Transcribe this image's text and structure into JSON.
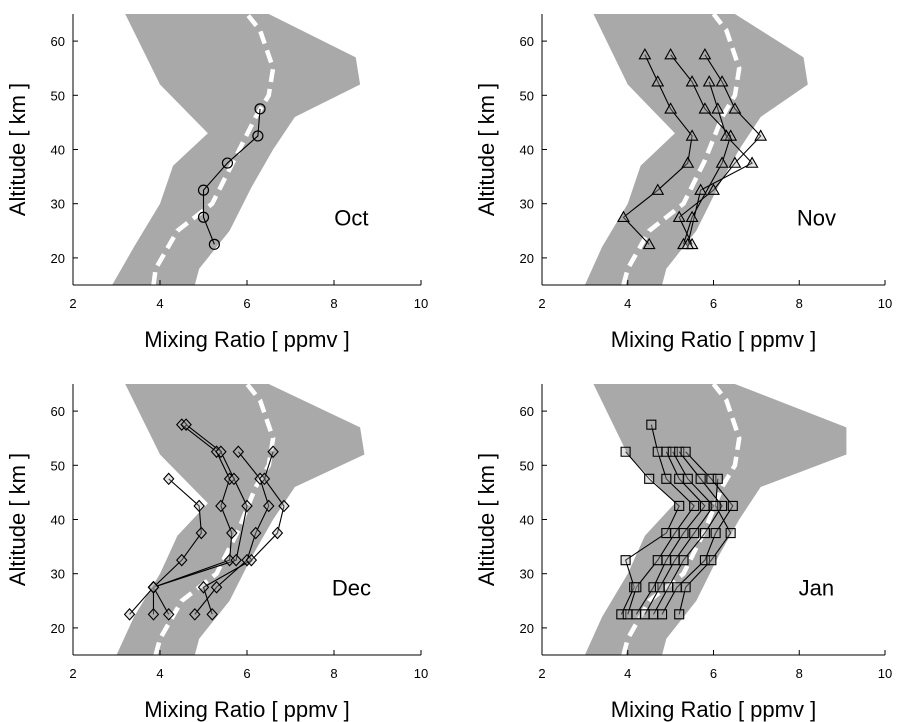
{
  "chart_data": [
    {
      "type": "line",
      "panel_label": "Oct",
      "xlabel": "Mixing Ratio  [ ppmv ]",
      "ylabel": "Altitude  [ km ]",
      "xlim": [
        2,
        10
      ],
      "ylim": [
        15,
        65
      ],
      "x_ticks": [
        "2",
        "4",
        "6",
        "8",
        "10"
      ],
      "y_ticks": [
        "20",
        "30",
        "40",
        "50",
        "60"
      ],
      "marker": "circle",
      "envelope": {
        "left": [
          [
            2.9,
            15
          ],
          [
            3.4,
            22
          ],
          [
            4.0,
            30
          ],
          [
            4.3,
            37
          ],
          [
            5.1,
            43
          ],
          [
            4.0,
            52
          ],
          [
            3.2,
            65
          ]
        ],
        "right": [
          [
            4.8,
            15
          ],
          [
            4.9,
            18
          ],
          [
            5.6,
            25
          ],
          [
            6.1,
            33
          ],
          [
            6.6,
            40
          ],
          [
            7.1,
            46
          ],
          [
            8.6,
            52
          ],
          [
            8.5,
            57
          ],
          [
            6.5,
            65
          ]
        ]
      },
      "mean_profile": [
        [
          3.85,
          15
        ],
        [
          3.9,
          18
        ],
        [
          4.4,
          25
        ],
        [
          5.2,
          30
        ],
        [
          5.7,
          38
        ],
        [
          6.2,
          46
        ],
        [
          6.5,
          50
        ],
        [
          6.6,
          55
        ],
        [
          6.3,
          62
        ],
        [
          6.0,
          65
        ]
      ],
      "series": [
        {
          "points": [
            [
              5.25,
              22.5
            ],
            [
              5.0,
              27.5
            ],
            [
              5.0,
              32.5
            ],
            [
              5.55,
              37.5
            ],
            [
              6.25,
              42.5
            ],
            [
              6.3,
              47.5
            ]
          ]
        }
      ]
    },
    {
      "type": "line",
      "panel_label": "Nov",
      "xlabel": "Mixing Ratio  [ ppmv ]",
      "ylabel": "Altitude  [ km ]",
      "xlim": [
        2,
        10
      ],
      "ylim": [
        15,
        65
      ],
      "x_ticks": [
        "2",
        "4",
        "6",
        "8",
        "10"
      ],
      "y_ticks": [
        "20",
        "30",
        "40",
        "50",
        "60"
      ],
      "marker": "triangle",
      "envelope": {
        "left": [
          [
            3.0,
            15
          ],
          [
            3.4,
            22
          ],
          [
            4.0,
            30
          ],
          [
            4.3,
            37
          ],
          [
            5.1,
            43
          ],
          [
            4.0,
            52
          ],
          [
            3.2,
            65
          ]
        ],
        "right": [
          [
            4.8,
            15
          ],
          [
            4.9,
            18
          ],
          [
            5.6,
            25
          ],
          [
            6.1,
            33
          ],
          [
            6.6,
            40
          ],
          [
            7.1,
            46
          ],
          [
            8.2,
            52
          ],
          [
            8.1,
            57
          ],
          [
            6.5,
            65
          ]
        ]
      },
      "mean_profile": [
        [
          3.9,
          15
        ],
        [
          4.0,
          18
        ],
        [
          4.5,
          25
        ],
        [
          5.3,
          30
        ],
        [
          5.8,
          38
        ],
        [
          6.2,
          46
        ],
        [
          6.5,
          50
        ],
        [
          6.6,
          55
        ],
        [
          6.3,
          62
        ],
        [
          6.0,
          65
        ]
      ],
      "series": [
        {
          "points": [
            [
              4.5,
              22.5
            ],
            [
              3.9,
              27.5
            ],
            [
              4.7,
              32.5
            ],
            [
              5.4,
              37.5
            ],
            [
              5.5,
              42.5
            ],
            [
              5.0,
              47.5
            ],
            [
              4.7,
              52.5
            ],
            [
              4.4,
              57.5
            ]
          ]
        },
        {
          "points": [
            [
              5.3,
              22.5
            ],
            [
              5.5,
              27.5
            ],
            [
              6.2,
              37.5
            ],
            [
              6.4,
              42.5
            ],
            [
              5.8,
              47.5
            ],
            [
              5.5,
              52.5
            ],
            [
              5.0,
              57.5
            ]
          ]
        },
        {
          "points": [
            [
              5.5,
              22.5
            ],
            [
              5.2,
              27.5
            ],
            [
              6.0,
              32.5
            ],
            [
              6.5,
              37.5
            ],
            [
              7.1,
              42.5
            ],
            [
              6.5,
              47.5
            ],
            [
              6.2,
              52.5
            ],
            [
              5.8,
              57.5
            ]
          ]
        },
        {
          "points": [
            [
              5.4,
              22.5
            ],
            [
              5.7,
              32.5
            ],
            [
              6.9,
              37.5
            ],
            [
              6.3,
              42.5
            ],
            [
              6.1,
              47.5
            ],
            [
              5.9,
              52.5
            ]
          ]
        }
      ]
    },
    {
      "type": "line",
      "panel_label": "Dec",
      "xlabel": "Mixing Ratio  [ ppmv ]",
      "ylabel": "Altitude  [ km ]",
      "xlim": [
        2,
        10
      ],
      "ylim": [
        15,
        65
      ],
      "x_ticks": [
        "2",
        "4",
        "6",
        "8",
        "10"
      ],
      "y_ticks": [
        "20",
        "30",
        "40",
        "50",
        "60"
      ],
      "marker": "diamond",
      "envelope": {
        "left": [
          [
            3.0,
            15
          ],
          [
            3.4,
            22
          ],
          [
            4.0,
            30
          ],
          [
            4.4,
            37
          ],
          [
            5.1,
            43
          ],
          [
            4.0,
            52
          ],
          [
            3.2,
            65
          ]
        ],
        "right": [
          [
            4.8,
            15
          ],
          [
            4.9,
            18
          ],
          [
            5.6,
            25
          ],
          [
            6.1,
            33
          ],
          [
            6.6,
            40
          ],
          [
            7.1,
            46
          ],
          [
            8.7,
            52
          ],
          [
            8.6,
            57
          ],
          [
            6.5,
            65
          ]
        ]
      },
      "mean_profile": [
        [
          3.9,
          15
        ],
        [
          4.0,
          18
        ],
        [
          4.5,
          25
        ],
        [
          5.3,
          30
        ],
        [
          5.8,
          38
        ],
        [
          6.2,
          46
        ],
        [
          6.5,
          50
        ],
        [
          6.6,
          55
        ],
        [
          6.3,
          62
        ],
        [
          6.0,
          65
        ]
      ],
      "series": [
        {
          "points": [
            [
              3.3,
              22.5
            ],
            [
              3.85,
              27.5
            ],
            [
              4.5,
              32.5
            ],
            [
              4.95,
              37.5
            ],
            [
              4.9,
              42.5
            ],
            [
              4.2,
              47.5
            ]
          ]
        },
        {
          "points": [
            [
              3.85,
              22.5
            ],
            [
              3.85,
              27.5
            ],
            [
              5.6,
              32.5
            ],
            [
              5.65,
              37.5
            ],
            [
              5.4,
              42.5
            ],
            [
              5.6,
              47.5
            ],
            [
              5.3,
              52.5
            ],
            [
              4.5,
              57.5
            ]
          ]
        },
        {
          "points": [
            [
              4.2,
              22.5
            ],
            [
              3.85,
              27.5
            ],
            [
              5.75,
              32.5
            ],
            [
              6.0,
              42.5
            ],
            [
              5.7,
              47.5
            ],
            [
              5.4,
              52.5
            ],
            [
              4.6,
              57.5
            ]
          ]
        },
        {
          "points": [
            [
              4.8,
              22.5
            ],
            [
              5.3,
              27.5
            ],
            [
              6.0,
              32.5
            ],
            [
              6.2,
              37.5
            ],
            [
              6.5,
              42.5
            ],
            [
              6.3,
              47.5
            ],
            [
              5.8,
              52.5
            ]
          ]
        },
        {
          "points": [
            [
              5.2,
              22.5
            ],
            [
              5.0,
              27.5
            ],
            [
              6.1,
              32.5
            ],
            [
              6.7,
              37.5
            ],
            [
              6.85,
              42.5
            ],
            [
              6.4,
              47.5
            ],
            [
              6.6,
              52.5
            ]
          ]
        }
      ]
    },
    {
      "type": "line",
      "panel_label": "Jan",
      "xlabel": "Mixing Ratio  [ ppmv ]",
      "ylabel": "Altitude  [ km ]",
      "xlim": [
        2,
        10
      ],
      "ylim": [
        15,
        65
      ],
      "x_ticks": [
        "2",
        "4",
        "6",
        "8",
        "10"
      ],
      "y_ticks": [
        "20",
        "30",
        "40",
        "50",
        "60"
      ],
      "marker": "square",
      "envelope": {
        "left": [
          [
            3.0,
            15
          ],
          [
            3.4,
            22
          ],
          [
            4.0,
            30
          ],
          [
            4.4,
            37
          ],
          [
            5.1,
            43
          ],
          [
            4.0,
            52
          ],
          [
            3.2,
            65
          ]
        ],
        "right": [
          [
            4.8,
            15
          ],
          [
            4.9,
            18
          ],
          [
            5.6,
            25
          ],
          [
            6.1,
            33
          ],
          [
            6.6,
            40
          ],
          [
            7.1,
            46
          ],
          [
            9.1,
            52
          ],
          [
            9.1,
            57
          ],
          [
            6.5,
            65
          ]
        ]
      },
      "mean_profile": [
        [
          3.9,
          15
        ],
        [
          4.0,
          18
        ],
        [
          4.5,
          25
        ],
        [
          5.3,
          30
        ],
        [
          5.8,
          38
        ],
        [
          6.2,
          46
        ],
        [
          6.5,
          50
        ],
        [
          6.6,
          55
        ],
        [
          6.3,
          62
        ],
        [
          6.0,
          65
        ]
      ],
      "series": [
        {
          "points": [
            [
              3.85,
              22.5
            ],
            [
              4.15,
              27.5
            ],
            [
              3.95,
              32.5
            ],
            [
              4.9,
              37.5
            ],
            [
              5.2,
              42.5
            ],
            [
              4.5,
              47.5
            ],
            [
              3.95,
              52.5
            ]
          ]
        },
        {
          "points": [
            [
              4.0,
              22.5
            ],
            [
              4.2,
              27.5
            ],
            [
              4.7,
              32.5
            ],
            [
              5.1,
              37.5
            ],
            [
              5.55,
              42.5
            ],
            [
              4.9,
              47.5
            ],
            [
              4.7,
              52.5
            ],
            [
              4.55,
              57.5
            ]
          ]
        },
        {
          "points": [
            [
              4.2,
              22.5
            ],
            [
              4.6,
              27.5
            ],
            [
              4.9,
              32.5
            ],
            [
              5.3,
              37.5
            ],
            [
              5.8,
              42.5
            ],
            [
              5.2,
              47.5
            ],
            [
              4.9,
              52.5
            ]
          ]
        },
        {
          "points": [
            [
              4.4,
              22.5
            ],
            [
              4.75,
              27.5
            ],
            [
              5.1,
              32.5
            ],
            [
              5.55,
              37.5
            ],
            [
              6.0,
              42.5
            ],
            [
              5.4,
              47.5
            ],
            [
              5.05,
              52.5
            ]
          ]
        },
        {
          "points": [
            [
              4.6,
              22.5
            ],
            [
              4.95,
              27.5
            ],
            [
              5.3,
              32.5
            ],
            [
              5.8,
              37.5
            ],
            [
              6.2,
              42.5
            ],
            [
              5.7,
              47.5
            ],
            [
              5.2,
              52.5
            ]
          ]
        },
        {
          "points": [
            [
              4.8,
              22.5
            ],
            [
              5.15,
              27.5
            ],
            [
              5.8,
              32.5
            ],
            [
              6.05,
              37.5
            ],
            [
              6.45,
              42.5
            ],
            [
              5.95,
              47.5
            ],
            [
              5.35,
              52.5
            ]
          ]
        },
        {
          "points": [
            [
              5.2,
              22.5
            ],
            [
              5.35,
              27.5
            ],
            [
              5.95,
              32.5
            ],
            [
              6.4,
              37.5
            ],
            [
              6.05,
              42.5
            ],
            [
              6.1,
              47.5
            ]
          ]
        }
      ]
    }
  ]
}
